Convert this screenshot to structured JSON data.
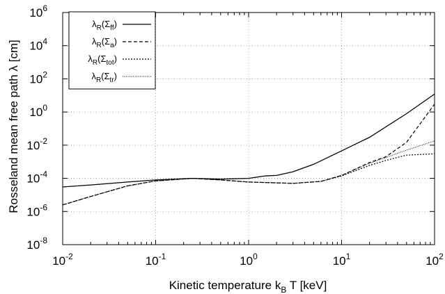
{
  "chart_data": {
    "type": "line",
    "title": "",
    "xlabel": {
      "main": "Kinetic temperature k",
      "sub": "B",
      "rest": "T [keV]"
    },
    "ylabel": "Rosseland mean free path λ [cm]",
    "xscale": "log",
    "yscale": "log",
    "xlim": [
      0.01,
      100
    ],
    "ylim": [
      1e-08,
      1000000.0
    ],
    "grid": true,
    "legend_position": "top-left",
    "x_ticks": [
      {
        "base": "10",
        "exp": "-2"
      },
      {
        "base": "10",
        "exp": "-1"
      },
      {
        "base": "10",
        "exp": "0"
      },
      {
        "base": "10",
        "exp": "1"
      },
      {
        "base": "10",
        "exp": "2"
      }
    ],
    "y_ticks": [
      {
        "base": "10",
        "exp": "-8"
      },
      {
        "base": "10",
        "exp": "-6"
      },
      {
        "base": "10",
        "exp": "-4"
      },
      {
        "base": "10",
        "exp": "-2"
      },
      {
        "base": "10",
        "exp": "0"
      },
      {
        "base": "10",
        "exp": "2"
      },
      {
        "base": "10",
        "exp": "4"
      },
      {
        "base": "10",
        "exp": "6"
      }
    ],
    "series": [
      {
        "name": "λR(Σff)",
        "label_main": "λ",
        "label_sub1": "R",
        "label_mid": "(Σ",
        "label_sub2": "ff",
        "label_end": ")",
        "dash": "solid",
        "points": [
          [
            0.01,
            3e-05
          ],
          [
            0.02,
            4e-05
          ],
          [
            0.05,
            6e-05
          ],
          [
            0.1,
            8e-05
          ],
          [
            0.25,
            0.0001
          ],
          [
            0.5,
            9e-05
          ],
          [
            1,
            0.0001
          ],
          [
            1.5,
            0.00014
          ],
          [
            2,
            0.00015
          ],
          [
            3,
            0.00025
          ],
          [
            5,
            0.0007
          ],
          [
            10,
            0.0045
          ],
          [
            20,
            0.03
          ],
          [
            50,
            0.8
          ],
          [
            100,
            12
          ]
        ]
      },
      {
        "name": "λR(Σa)",
        "label_main": "λ",
        "label_sub1": "R",
        "label_mid": "(Σ",
        "label_sub2": "a",
        "label_end": ")",
        "dash": "dashed",
        "points": [
          [
            0.01,
            2.5e-06
          ],
          [
            0.02,
            8e-06
          ],
          [
            0.05,
            3.5e-05
          ],
          [
            0.1,
            7e-05
          ],
          [
            0.25,
            0.0001
          ],
          [
            0.5,
            8e-05
          ],
          [
            1,
            6e-05
          ],
          [
            3,
            5e-05
          ],
          [
            6,
            6.5e-05
          ],
          [
            10,
            0.00015
          ],
          [
            20,
            0.0009
          ],
          [
            30,
            0.002
          ],
          [
            50,
            0.015
          ],
          [
            100,
            3
          ]
        ]
      },
      {
        "name": "λR(Σtot)",
        "label_main": "λ",
        "label_sub1": "R",
        "label_mid": "(Σ",
        "label_sub2": "tot",
        "label_end": ")",
        "dash": "dotted",
        "points": [
          [
            0.01,
            2.5e-06
          ],
          [
            0.02,
            8e-06
          ],
          [
            0.05,
            3.5e-05
          ],
          [
            0.1,
            7e-05
          ],
          [
            0.25,
            0.0001
          ],
          [
            0.5,
            8e-05
          ],
          [
            1,
            6e-05
          ],
          [
            3,
            5e-05
          ],
          [
            6,
            6.5e-05
          ],
          [
            10,
            0.00014
          ],
          [
            20,
            0.0006
          ],
          [
            30,
            0.0012
          ],
          [
            50,
            0.0025
          ],
          [
            100,
            0.003
          ]
        ]
      },
      {
        "name": "λR(Σtr)",
        "label_main": "λ",
        "label_sub1": "R",
        "label_mid": "(Σ",
        "label_sub2": "tr",
        "label_end": ")",
        "dash": "fine-dotted",
        "points": [
          [
            0.01,
            2.5e-06
          ],
          [
            0.02,
            8e-06
          ],
          [
            0.05,
            3.5e-05
          ],
          [
            0.1,
            7e-05
          ],
          [
            0.25,
            0.0001
          ],
          [
            0.5,
            8e-05
          ],
          [
            1,
            6e-05
          ],
          [
            3,
            5e-05
          ],
          [
            6,
            6.5e-05
          ],
          [
            10,
            0.00015
          ],
          [
            20,
            0.0008
          ],
          [
            30,
            0.0018
          ],
          [
            50,
            0.005
          ],
          [
            100,
            0.018
          ]
        ]
      }
    ]
  }
}
